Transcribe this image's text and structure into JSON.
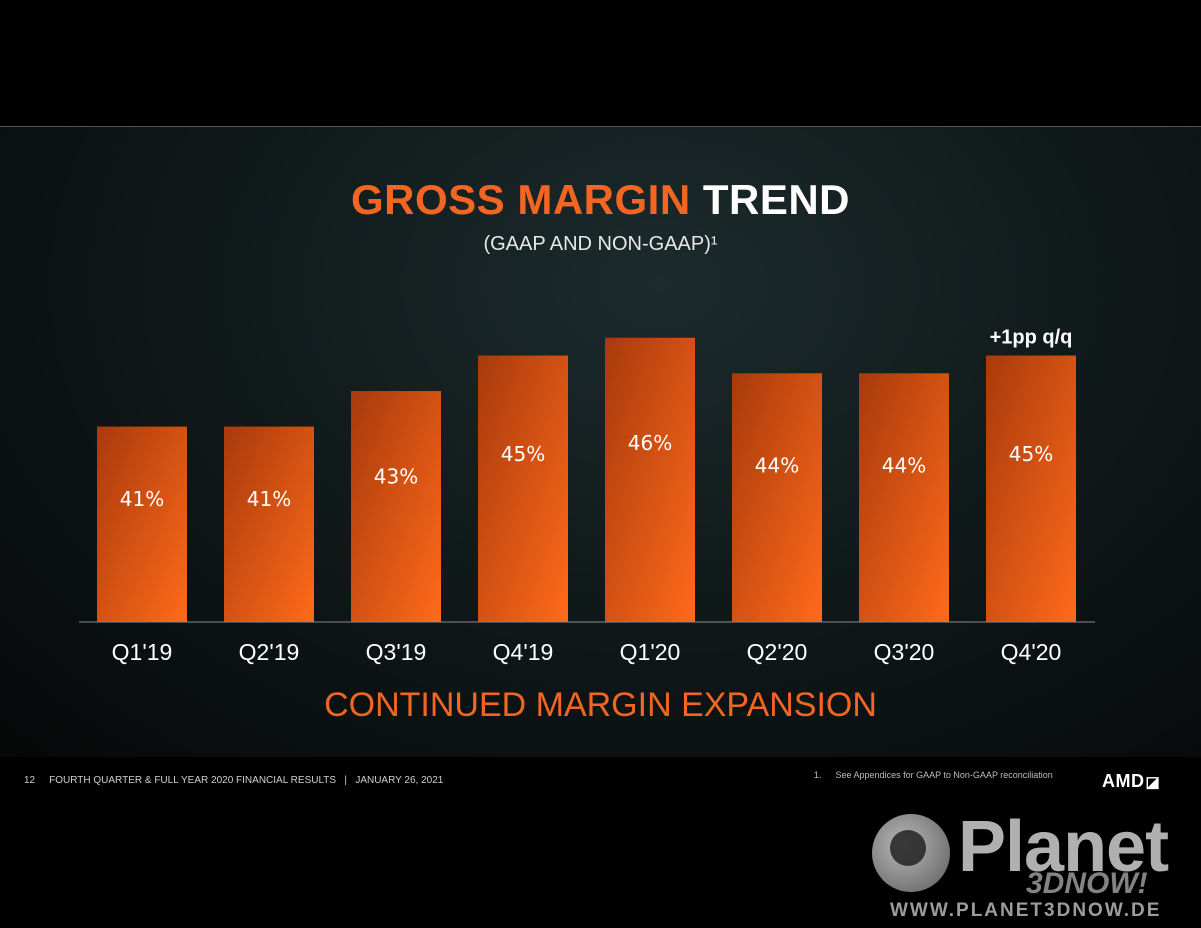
{
  "title": {
    "accent": "GROSS MARGIN",
    "plain": "TREND"
  },
  "subtitle": "(GAAP AND NON-GAAP)¹",
  "tagline": "CONTINUED MARGIN EXPANSION",
  "footer": {
    "page_number": "12",
    "text": "FOURTH QUARTER & FULL YEAR 2020 FINANCIAL RESULTS   |   JANUARY 26, 2021",
    "note_number": "1.",
    "note_text": "See Appendices for GAAP to Non-GAAP reconciliation"
  },
  "logo": {
    "text": "AMD",
    "icon": "amd-arrow-icon"
  },
  "watermark": {
    "name": "Planet",
    "sub": "3DNOW!",
    "url": "WWW.PLANET3DNOW.DE"
  },
  "colors": {
    "accent": "#f26522",
    "bar_dark": "#a83a0c",
    "bar_light": "#ff6a1a"
  },
  "chart_data": {
    "type": "bar",
    "categories": [
      "Q1'19",
      "Q2'19",
      "Q3'19",
      "Q4'19",
      "Q1'20",
      "Q2'20",
      "Q3'20",
      "Q4'20"
    ],
    "values": [
      41,
      41,
      43,
      45,
      46,
      44,
      44,
      45
    ],
    "data_labels": [
      "41%",
      "41%",
      "43%",
      "45%",
      "46%",
      "44%",
      "44%",
      "45%"
    ],
    "annotation": {
      "category": "Q4'20",
      "text": "+1pp q/q"
    },
    "ylim": [
      30,
      47
    ],
    "grid": false,
    "legend": "none"
  }
}
